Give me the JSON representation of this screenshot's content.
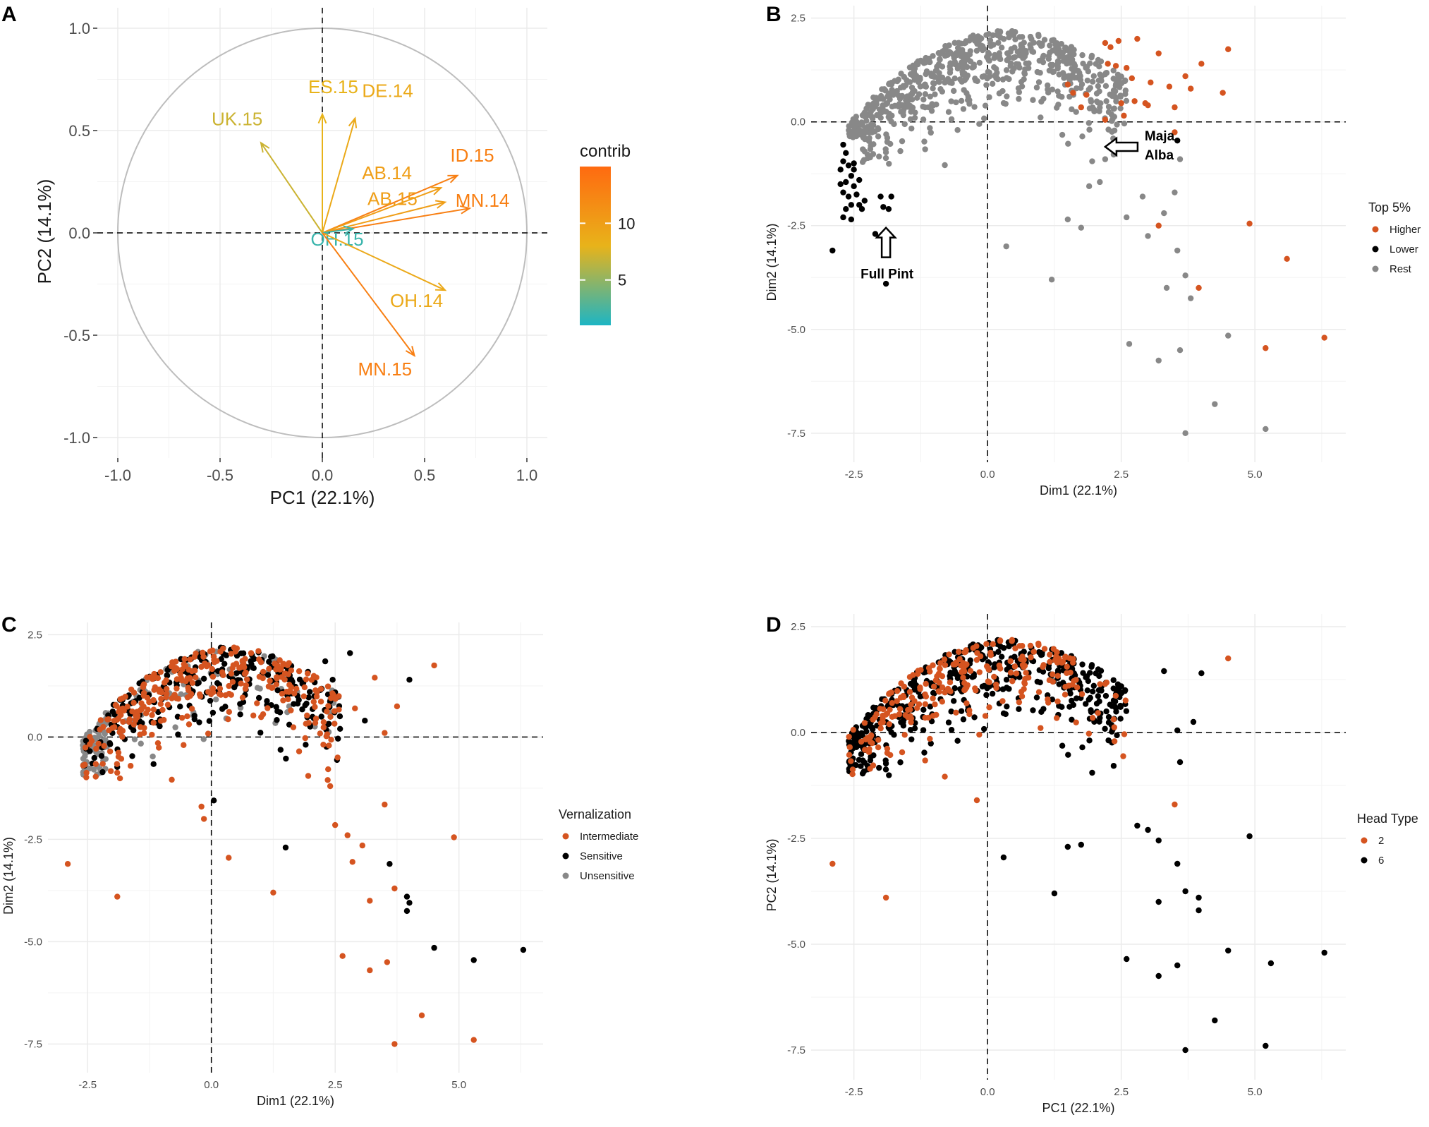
{
  "colors": {
    "higher": "#d55420",
    "lower": "#000000",
    "rest": "#888888",
    "intermediate": "#d55420",
    "sensitive": "#000000",
    "unsensitive": "#888888",
    "head2": "#d55420",
    "head6": "#000000",
    "gradient": [
      "#1db5c4",
      "#e8b31a",
      "#ff6a10"
    ]
  },
  "chart_data": [
    {
      "panel": "A",
      "type": "scatter",
      "subtype": "pca-variable-correlation-circle",
      "xlabel": "PC1 (22.1%)",
      "ylabel": "PC2 (14.1%)",
      "xlim": [
        -1.1,
        1.1
      ],
      "ylim": [
        -1.1,
        1.1
      ],
      "xticks": [
        "-1.0",
        "-0.5",
        "0.0",
        "0.5",
        "1.0"
      ],
      "yticks": [
        "-1.0",
        "-0.5",
        "0.0",
        "0.5",
        "1.0"
      ],
      "xtick_values": [
        -1.0,
        -0.5,
        0.0,
        0.5,
        1.0
      ],
      "ytick_values": [
        -1.0,
        -0.5,
        0.0,
        0.5,
        1.0
      ],
      "legend_title": "contrib",
      "legend_ticks": [
        "10",
        "5"
      ],
      "legend_tick_values": [
        10,
        5
      ],
      "contrib_range": [
        1,
        15
      ],
      "vectors": [
        {
          "name": "ES.15",
          "x": 0.0,
          "y": 0.58,
          "contrib": 8
        },
        {
          "name": "DE.14",
          "x": 0.16,
          "y": 0.56,
          "contrib": 9
        },
        {
          "name": "UK.15",
          "x": -0.3,
          "y": 0.44,
          "contrib": 7
        },
        {
          "name": "ID.15",
          "x": 0.66,
          "y": 0.28,
          "contrib": 13
        },
        {
          "name": "AB.14",
          "x": 0.58,
          "y": 0.22,
          "contrib": 10
        },
        {
          "name": "AB.15",
          "x": 0.6,
          "y": 0.15,
          "contrib": 10
        },
        {
          "name": "MN.14",
          "x": 0.72,
          "y": 0.12,
          "contrib": 13
        },
        {
          "name": "OH.15",
          "x": 0.15,
          "y": 0.02,
          "contrib": 2
        },
        {
          "name": "OH.14",
          "x": 0.6,
          "y": -0.28,
          "contrib": 9
        },
        {
          "name": "MN.15",
          "x": 0.45,
          "y": -0.6,
          "contrib": 13
        }
      ]
    },
    {
      "panel": "B",
      "type": "scatter",
      "xlabel": "Dim1 (22.1%)",
      "ylabel": "Dim2 (14.1%)",
      "xlim": [
        -3.3,
        6.7
      ],
      "ylim": [
        -8.2,
        2.8
      ],
      "xticks": [
        "-2.5",
        "0.0",
        "2.5",
        "5.0"
      ],
      "yticks": [
        "2.5",
        "0.0",
        "-2.5",
        "-5.0",
        "-7.5"
      ],
      "xtick_values": [
        -2.5,
        0.0,
        2.5,
        5.0
      ],
      "ytick_values": [
        2.5,
        0.0,
        -2.5,
        -5.0,
        -7.5
      ],
      "legend_title": "Top 5%",
      "legend": [
        "Higher",
        "Lower",
        "Rest"
      ],
      "annotations": [
        "Full Pint",
        "Maja",
        "Alba"
      ],
      "series": [
        {
          "name": "Higher",
          "points": [
            [
              2.8,
              2.0
            ],
            [
              2.45,
              1.95
            ],
            [
              2.2,
              1.9
            ],
            [
              2.3,
              1.8
            ],
            [
              3.2,
              1.65
            ],
            [
              4.5,
              1.75
            ],
            [
              4.0,
              1.4
            ],
            [
              2.25,
              1.4
            ],
            [
              2.4,
              1.35
            ],
            [
              2.6,
              1.3
            ],
            [
              3.7,
              1.1
            ],
            [
              2.7,
              1.05
            ],
            [
              3.05,
              0.95
            ],
            [
              3.4,
              0.85
            ],
            [
              3.8,
              0.8
            ],
            [
              2.95,
              0.45
            ],
            [
              4.4,
              0.7
            ],
            [
              2.5,
              0.45
            ],
            [
              2.75,
              0.5
            ],
            [
              3.0,
              0.4
            ],
            [
              3.5,
              0.35
            ],
            [
              2.55,
              0.15
            ],
            [
              2.2,
              0.05
            ],
            [
              3.5,
              -0.25
            ],
            [
              1.5,
              0.9
            ],
            [
              1.6,
              0.7
            ],
            [
              1.85,
              0.65
            ],
            [
              1.75,
              0.35
            ],
            [
              3.2,
              -2.5
            ],
            [
              4.9,
              -2.45
            ],
            [
              5.6,
              -3.3
            ],
            [
              3.95,
              -4.0
            ],
            [
              5.2,
              -5.45
            ],
            [
              6.3,
              -5.2
            ]
          ]
        },
        {
          "name": "Lower",
          "points": [
            [
              -2.7,
              -0.55
            ],
            [
              -2.65,
              -0.75
            ],
            [
              -2.7,
              -0.95
            ],
            [
              -2.75,
              -1.15
            ],
            [
              -2.6,
              -1.05
            ],
            [
              -2.5,
              -1.0
            ],
            [
              -2.55,
              -1.3
            ],
            [
              -2.65,
              -1.45
            ],
            [
              -2.75,
              -1.5
            ],
            [
              -2.7,
              -1.7
            ],
            [
              -2.6,
              -1.8
            ],
            [
              -2.5,
              -1.55
            ],
            [
              -2.45,
              -1.75
            ],
            [
              -2.55,
              -2.0
            ],
            [
              -2.65,
              -2.1
            ],
            [
              -2.7,
              -2.3
            ],
            [
              -2.55,
              -2.35
            ],
            [
              -2.4,
              -2.0
            ],
            [
              -2.3,
              -1.9
            ],
            [
              -2.5,
              -1.15
            ],
            [
              -2.4,
              -1.4
            ],
            [
              -2.35,
              -2.1
            ],
            [
              -2.1,
              -2.7
            ],
            [
              -2.0,
              -1.8
            ],
            [
              -1.8,
              -1.8
            ],
            [
              -1.95,
              -2.05
            ],
            [
              -1.85,
              -2.1
            ],
            [
              -2.9,
              -3.1
            ],
            [
              -1.9,
              -3.9
            ],
            [
              3.55,
              -0.45
            ]
          ]
        },
        {
          "name": "Rest",
          "points": "generated"
        }
      ]
    },
    {
      "panel": "C",
      "type": "scatter",
      "xlabel": "Dim1 (22.1%)",
      "ylabel": "Dim2 (14.1%)",
      "xlim": [
        -3.3,
        6.7
      ],
      "ylim": [
        -8.2,
        2.8
      ],
      "xticks": [
        "-2.5",
        "0.0",
        "2.5",
        "5.0"
      ],
      "yticks": [
        "2.5",
        "0.0",
        "-2.5",
        "-5.0",
        "-7.5"
      ],
      "xtick_values": [
        -2.5,
        0.0,
        2.5,
        5.0
      ],
      "ytick_values": [
        2.5,
        0.0,
        -2.5,
        -5.0,
        -7.5
      ],
      "legend_title": "Vernalization",
      "legend": [
        "Intermediate",
        "Sensitive",
        "Unsensitive"
      ],
      "series": [
        {
          "name": "Intermediate",
          "points": [
            [
              4.5,
              1.75
            ],
            [
              3.3,
              1.45
            ],
            [
              3.75,
              0.75
            ],
            [
              2.9,
              0.7
            ],
            [
              3.5,
              0.1
            ],
            [
              2.55,
              -0.5
            ],
            [
              2.35,
              -1.05
            ],
            [
              2.4,
              -1.2
            ],
            [
              3.5,
              -1.65
            ],
            [
              2.5,
              -2.15
            ],
            [
              2.75,
              -2.4
            ],
            [
              3.05,
              -2.65
            ],
            [
              2.85,
              -3.05
            ],
            [
              -2.9,
              -3.1
            ],
            [
              -1.9,
              -3.9
            ],
            [
              0.35,
              -2.95
            ],
            [
              1.25,
              -3.8
            ],
            [
              3.2,
              -4.0
            ],
            [
              3.7,
              -3.7
            ],
            [
              4.9,
              -2.45
            ],
            [
              2.65,
              -5.35
            ],
            [
              3.2,
              -5.7
            ],
            [
              3.55,
              -5.5
            ],
            [
              4.25,
              -6.8
            ],
            [
              5.3,
              -7.4
            ],
            [
              3.7,
              -7.5
            ],
            [
              -0.15,
              -2.0
            ],
            [
              -0.2,
              -1.7
            ]
          ]
        },
        {
          "name": "Sensitive",
          "points": [
            [
              4.0,
              1.4
            ],
            [
              2.8,
              2.05
            ],
            [
              2.3,
              1.85
            ],
            [
              2.45,
              1.4
            ],
            [
              3.1,
              0.4
            ],
            [
              2.6,
              0.2
            ],
            [
              1.5,
              -2.7
            ],
            [
              3.6,
              -3.1
            ],
            [
              3.95,
              -3.9
            ],
            [
              4.0,
              -4.05
            ],
            [
              3.95,
              -4.25
            ],
            [
              4.5,
              -5.15
            ],
            [
              5.3,
              -5.45
            ],
            [
              6.3,
              -5.2
            ],
            [
              0.05,
              -1.55
            ]
          ]
        },
        {
          "name": "Unsensitive",
          "points": "generated"
        }
      ]
    },
    {
      "panel": "D",
      "type": "scatter",
      "xlabel": "PC1 (22.1%)",
      "ylabel": "PC2 (14.1%)",
      "xlim": [
        -3.3,
        6.7
      ],
      "ylim": [
        -8.2,
        2.8
      ],
      "xticks": [
        "-2.5",
        "0.0",
        "2.5",
        "5.0"
      ],
      "yticks": [
        "2.5",
        "0.0",
        "-2.5",
        "-5.0",
        "-7.5"
      ],
      "xtick_values": [
        -2.5,
        0.0,
        2.5,
        5.0
      ],
      "ytick_values": [
        2.5,
        0.0,
        -2.5,
        -5.0,
        -7.5
      ],
      "legend_title": "Head Type",
      "legend": [
        "2",
        "6"
      ],
      "series": [
        {
          "name": "2",
          "points": [
            [
              4.5,
              1.75
            ],
            [
              3.5,
              -1.7
            ],
            [
              -2.9,
              -3.1
            ],
            [
              -1.9,
              -3.9
            ],
            [
              -0.2,
              -1.6
            ]
          ]
        },
        {
          "name": "6",
          "points": [
            [
              4.0,
              1.4
            ],
            [
              3.3,
              1.45
            ],
            [
              3.85,
              0.25
            ],
            [
              3.55,
              0.05
            ],
            [
              3.6,
              -0.7
            ],
            [
              3.2,
              -2.55
            ],
            [
              3.55,
              -3.1
            ],
            [
              3.95,
              -3.9
            ],
            [
              3.95,
              -4.2
            ],
            [
              4.5,
              -5.15
            ],
            [
              6.3,
              -5.2
            ],
            [
              5.3,
              -5.45
            ],
            [
              4.25,
              -6.8
            ],
            [
              3.7,
              -7.5
            ],
            [
              5.2,
              -7.4
            ],
            [
              2.6,
              -5.35
            ],
            [
              3.2,
              -5.75
            ],
            [
              3.55,
              -5.5
            ],
            [
              4.9,
              -2.45
            ],
            [
              3.7,
              -3.75
            ],
            [
              3.2,
              -4.0
            ],
            [
              1.25,
              -3.8
            ],
            [
              0.3,
              -2.95
            ],
            [
              1.5,
              -2.7
            ],
            [
              1.75,
              -2.65
            ],
            [
              3.0,
              -2.3
            ],
            [
              2.8,
              -2.2
            ]
          ]
        }
      ]
    }
  ]
}
